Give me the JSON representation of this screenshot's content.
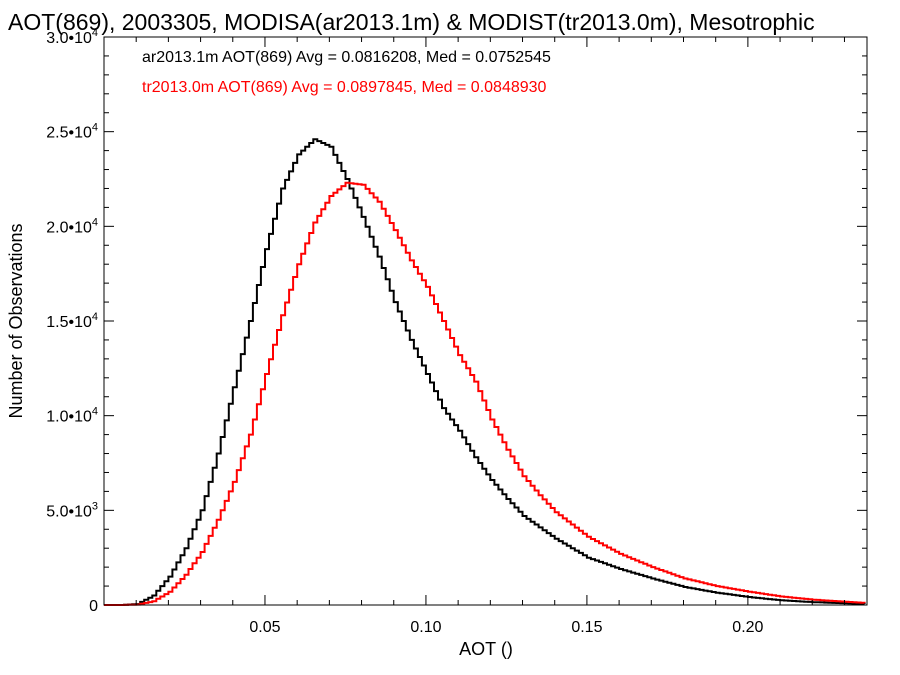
{
  "chart_data": {
    "type": "line",
    "title": "AOT(869), 2003305, MODISA(ar2013.1m) & MODIST(tr2013.0m), Mesotrophic",
    "xlabel": "AOT ()",
    "ylabel": "Number of Observations",
    "xlim": [
      0.0,
      0.237
    ],
    "ylim": [
      0,
      30000
    ],
    "x_ticks": [
      {
        "value": 0.05,
        "label": "0.05"
      },
      {
        "value": 0.1,
        "label": "0.10"
      },
      {
        "value": 0.15,
        "label": "0.15"
      },
      {
        "value": 0.2,
        "label": "0.20"
      }
    ],
    "y_ticks": [
      {
        "value": 0,
        "label": "0",
        "exp": ""
      },
      {
        "value": 5000,
        "label": "5.0•10",
        "exp": "3"
      },
      {
        "value": 10000,
        "label": "1.0•10",
        "exp": "4"
      },
      {
        "value": 15000,
        "label": "1.5•10",
        "exp": "4"
      },
      {
        "value": 20000,
        "label": "2.0•10",
        "exp": "4"
      },
      {
        "value": 25000,
        "label": "2.5•10",
        "exp": "4"
      },
      {
        "value": 30000,
        "label": "3.0•10",
        "exp": "4"
      }
    ],
    "grid": false,
    "legend": "top-left",
    "series": [
      {
        "name": "ar2013.1m AOT(869) Avg = 0.0816208, Med = 0.0752545",
        "color": "#000000",
        "x": [
          0.005,
          0.01,
          0.015,
          0.02,
          0.025,
          0.03,
          0.035,
          0.04,
          0.045,
          0.05,
          0.055,
          0.06,
          0.065,
          0.07,
          0.075,
          0.08,
          0.085,
          0.09,
          0.095,
          0.1,
          0.105,
          0.11,
          0.115,
          0.12,
          0.125,
          0.13,
          0.135,
          0.14,
          0.15,
          0.16,
          0.17,
          0.18,
          0.19,
          0.2,
          0.21,
          0.22,
          0.237
        ],
        "y": [
          0,
          50,
          500,
          1500,
          3000,
          5000,
          8000,
          11500,
          15000,
          18800,
          22000,
          23800,
          24600,
          24200,
          22500,
          20500,
          18400,
          16000,
          14000,
          12200,
          10400,
          9200,
          7800,
          6600,
          5600,
          4700,
          4100,
          3500,
          2500,
          1900,
          1400,
          950,
          650,
          420,
          250,
          150,
          50
        ]
      },
      {
        "name": "tr2013.0m AOT(869) Avg = 0.0897845, Med = 0.0848930",
        "color": "#ff0000",
        "x": [
          0.005,
          0.01,
          0.015,
          0.02,
          0.025,
          0.03,
          0.035,
          0.04,
          0.045,
          0.05,
          0.055,
          0.06,
          0.065,
          0.07,
          0.075,
          0.08,
          0.085,
          0.09,
          0.095,
          0.1,
          0.105,
          0.11,
          0.115,
          0.12,
          0.125,
          0.13,
          0.135,
          0.14,
          0.15,
          0.16,
          0.17,
          0.18,
          0.19,
          0.2,
          0.21,
          0.22,
          0.237
        ],
        "y": [
          0,
          20,
          200,
          700,
          1600,
          2800,
          4500,
          6500,
          9000,
          12200,
          15300,
          18000,
          20200,
          21600,
          22300,
          22200,
          21300,
          19800,
          18200,
          16800,
          15000,
          13200,
          11800,
          9800,
          8200,
          6800,
          5800,
          4900,
          3600,
          2700,
          2000,
          1400,
          1000,
          700,
          450,
          280,
          100
        ]
      }
    ]
  }
}
